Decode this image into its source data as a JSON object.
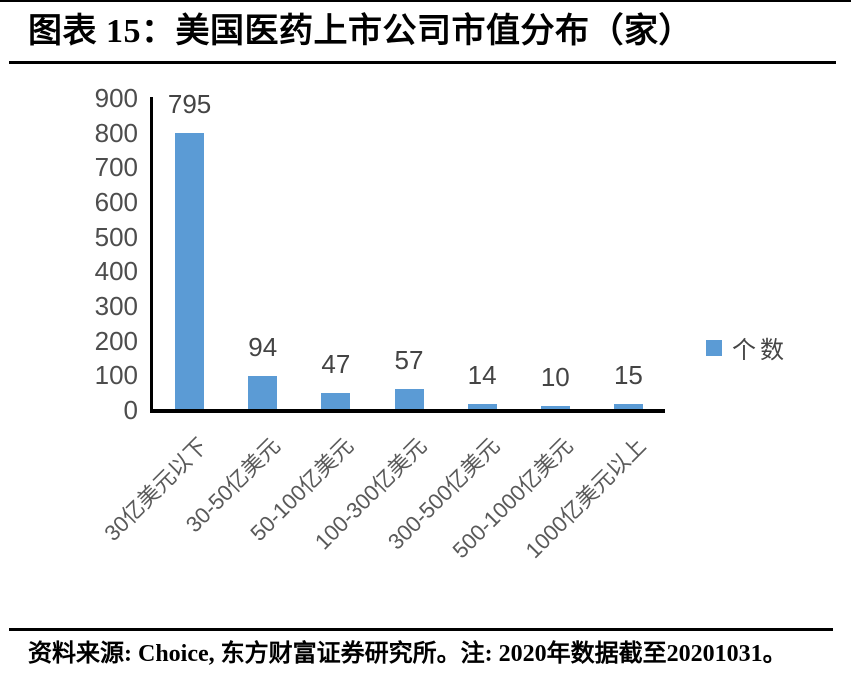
{
  "figure": {
    "title": "图表 15：美国医药上市公司市值分布（家）",
    "source_note": "资料来源: Choice, 东方财富证券研究所。注: 2020年数据截至20201031。"
  },
  "chart_data": {
    "type": "bar",
    "title": "美国医药上市公司市值分布（家）",
    "categories": [
      "30亿美元以下",
      "30-50亿美元",
      "50-100亿美元",
      "100-300亿美元",
      "300-500亿美元",
      "500-1000亿美元",
      "1000亿美元以上"
    ],
    "series": [
      {
        "name": "个数",
        "values": [
          795,
          94,
          47,
          57,
          14,
          10,
          15
        ]
      }
    ],
    "data_labels": [
      795,
      94,
      47,
      57,
      14,
      10,
      15
    ],
    "xlabel": "",
    "ylabel": "",
    "ylim": [
      0,
      900
    ],
    "ytick_step": 100,
    "yticks": [
      0,
      100,
      200,
      300,
      400,
      500,
      600,
      700,
      800,
      900
    ],
    "grid": false,
    "legend_position": "right",
    "x_label_rotation_deg": -45,
    "colors": {
      "bar": "#5B9BD5",
      "axis_line": "#000000",
      "tick_text": "#4d4d4d",
      "value_label_text": "#444444",
      "category_text": "#595959"
    }
  }
}
